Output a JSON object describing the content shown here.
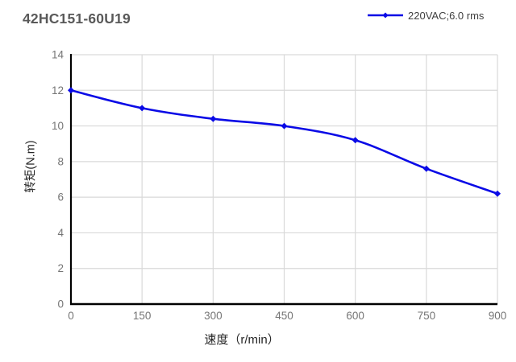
{
  "header": {
    "title": "42HC151-60U19"
  },
  "legend": {
    "label": "220VAC;6.0 rms"
  },
  "chart_data": {
    "type": "line",
    "title": "42HC151-60U19",
    "xlabel": "速度（r/min）",
    "ylabel": "转矩(N.m)",
    "x": [
      0,
      150,
      300,
      450,
      600,
      750,
      900
    ],
    "series": [
      {
        "name": "220VAC;6.0 rms",
        "color": "#0a0ae6",
        "marker": "diamond",
        "values": [
          12,
          11,
          10.4,
          10,
          9.2,
          7.6,
          6.2
        ]
      }
    ],
    "xlim": [
      0,
      900
    ],
    "ylim": [
      0,
      14
    ],
    "xticks": [
      0,
      150,
      300,
      450,
      600,
      750,
      900
    ],
    "yticks": [
      0,
      2,
      4,
      6,
      8,
      10,
      12,
      14
    ],
    "grid": true,
    "smooth": true,
    "legend_position": "top-right",
    "colors": {
      "background": "#ffffff",
      "grid": "#d9d9d9",
      "axis": "#000000",
      "tick_label": "#757575",
      "axis_title": "#262626",
      "title_color": "#595959",
      "legend_text": "#3f3f3f"
    }
  }
}
